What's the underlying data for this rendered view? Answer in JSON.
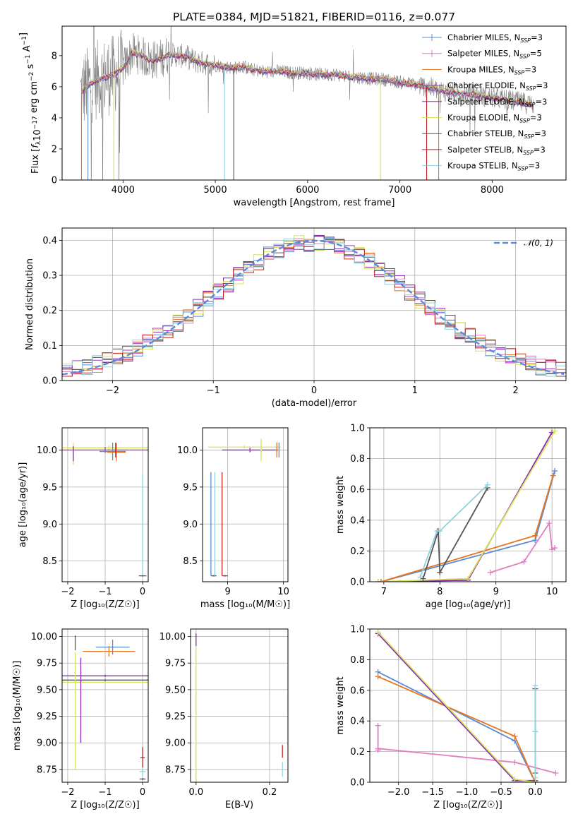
{
  "figure_title": "PLATE=0384, MJD=51821, FIBERID=0116, z=0.077",
  "colors": {
    "Chabrier MILES": "#5b8bd6",
    "Salpeter MILES": "#e27fc0",
    "Kroupa MILES": "#e8741a",
    "Chabrier ELODIE": "#a23bc5",
    "Salpeter ELODIE": "#8a2ab2",
    "Kroupa ELODIE": "#d4e45a",
    "Chabrier STELIB": "#555555",
    "Salpeter STELIB": "#c62020",
    "Kroupa STELIB": "#8fd4de",
    "normal": "#5b8bd6",
    "data_spectrum": "#808080"
  },
  "chart_data": [
    {
      "id": "spectrum",
      "type": "line",
      "xlabel": "wavelength [Angstrom, rest frame]",
      "ylabel_parts": {
        "pre": "Flux [",
        "fsym": "f",
        "fsub": "λ",
        "mid": "10",
        "exp1": "−17",
        "mid2": " erg cm",
        "exp2": "−2",
        "mid3": " s",
        "exp3": "−1",
        "mid4": " A",
        "exp4": "−1",
        "post": "]"
      },
      "xlim": [
        3340,
        8800
      ],
      "ylim": [
        0,
        9.9
      ],
      "xticks": [
        4000,
        5000,
        6000,
        7000,
        8000
      ],
      "yticks": [
        0,
        2,
        4,
        6,
        8
      ],
      "continuum": {
        "x": [
          3550,
          3600,
          3700,
          3800,
          3900,
          4000,
          4100,
          4200,
          4300,
          4400,
          4500,
          4600,
          4700,
          4800,
          4900,
          5000,
          5100,
          5200,
          5300,
          5400,
          5500,
          5600,
          5700,
          5800,
          5900,
          6000,
          6100,
          6200,
          6300,
          6400,
          6500,
          6600,
          6700,
          6800,
          6900,
          7000,
          7100,
          7200,
          7300,
          7400,
          7500,
          7600,
          7700,
          7800,
          7900,
          8000,
          8100,
          8200,
          8300,
          8400,
          8500
        ],
        "y": [
          5.6,
          6.0,
          6.4,
          6.6,
          6.8,
          7.2,
          8.2,
          8.0,
          7.7,
          7.8,
          8.1,
          8.0,
          7.9,
          7.6,
          7.5,
          7.4,
          7.3,
          7.2,
          7.3,
          7.1,
          7.0,
          7.0,
          7.0,
          6.9,
          6.9,
          6.9,
          6.8,
          6.8,
          6.8,
          6.7,
          6.6,
          6.6,
          6.5,
          6.5,
          6.4,
          6.3,
          6.2,
          6.1,
          6.0,
          5.8,
          5.7,
          5.6,
          5.6,
          5.5,
          5.4,
          5.3,
          5.2,
          5.1,
          5.0,
          4.9,
          4.8
        ]
      },
      "legend": [
        {
          "name": "Chabrier MILES",
          "nssp": "3"
        },
        {
          "name": "Salpeter MILES",
          "nssp": "5"
        },
        {
          "name": "Kroupa MILES",
          "nssp": "3"
        },
        {
          "name": "Chabrier ELODIE",
          "nssp": "3"
        },
        {
          "name": "Salpeter ELODIE",
          "nssp": "3"
        },
        {
          "name": "Kroupa ELODIE",
          "nssp": "3"
        },
        {
          "name": "Chabrier STELIB",
          "nssp": "3"
        },
        {
          "name": "Salpeter STELIB",
          "nssp": "3"
        },
        {
          "name": "Kroupa STELIB",
          "nssp": "3"
        }
      ],
      "legend_label_symbol": "N",
      "legend_label_sub": "SSP",
      "legend_placement": "top-right"
    },
    {
      "id": "residuals",
      "type": "line",
      "xlabel": "(data-model)/error",
      "ylabel": "Normed distribution",
      "xlim": [
        -2.5,
        2.5
      ],
      "ylim": [
        0,
        0.435
      ],
      "xticks": [
        -2,
        -1,
        0,
        1,
        2
      ],
      "yticks": [
        0.0,
        0.1,
        0.2,
        0.3,
        0.4
      ],
      "xtick_labels": [
        "−2",
        "−1",
        "0",
        "1",
        "2"
      ],
      "ytick_labels": [
        "0.0",
        "0.1",
        "0.2",
        "0.3",
        "0.4"
      ],
      "bin_width": 0.1,
      "legend_label": "𝒩(0, 1)",
      "legend_placement": "top-right",
      "grid": true
    },
    {
      "id": "age_vs_Z",
      "type": "errorbar",
      "xlabel": "Z [log₁₀(Z/Z☉)]",
      "ylabel": "age  [log₁₀(age/yr)]",
      "xlim": [
        -2.15,
        0.15
      ],
      "ylim": [
        8.22,
        10.3
      ],
      "xticks": [
        -2,
        -1,
        0
      ],
      "yticks": [
        8.5,
        9.0,
        9.5,
        10.0
      ],
      "xtick_labels": [
        "−2",
        "−1",
        "0"
      ],
      "ytick_labels": [
        "8.5",
        "9.0",
        "9.5",
        "10.0"
      ],
      "points": [
        {
          "model": "Kroupa ELODIE",
          "x": -0.9,
          "xerr": 1.95,
          "y": 10.03,
          "yerr": 0.03
        },
        {
          "model": "Chabrier ELODIE",
          "x": -1.0,
          "xerr": 1.8,
          "y": 10.0,
          "yerr": 0.04
        },
        {
          "model": "Kroupa ELODIE",
          "x": -1.85,
          "xerr": 0.01,
          "y": 9.95,
          "yerr": 0.15
        },
        {
          "model": "Salpeter ELODIE",
          "x": -1.85,
          "xerr": 0.01,
          "y": 9.95,
          "yerr": 0.1
        },
        {
          "model": "Chabrier MILES",
          "x": -0.8,
          "xerr": 0.35,
          "y": 9.98,
          "yerr": 0.12
        },
        {
          "model": "Kroupa MILES",
          "x": -0.7,
          "xerr": 0.25,
          "y": 9.97,
          "yerr": 0.12
        },
        {
          "model": "Salpeter STELIB",
          "x": -0.72,
          "xerr": 0.02,
          "y": 10.0,
          "yerr": 0.1
        },
        {
          "model": "Kroupa STELIB",
          "x": 0.0,
          "xerr": 0.01,
          "y": 9.0,
          "yerr": 0.68
        },
        {
          "model": "Chabrier STELIB",
          "x": 0.0,
          "xerr": 0.1,
          "y": 8.3,
          "yerr": 0.01
        }
      ]
    },
    {
      "id": "age_vs_mass",
      "type": "errorbar",
      "xlabel": "mass [log₁₀(M/M☉)]",
      "xlim": [
        8.55,
        10.08
      ],
      "ylim": [
        8.22,
        10.3
      ],
      "xticks": [
        9,
        10
      ],
      "yticks": [
        8.5,
        9.0,
        9.5,
        10.0
      ],
      "xtick_labels": [
        "9",
        "10"
      ],
      "ytick_labels": [
        "8.5",
        "9.0",
        "9.5",
        "10.0"
      ],
      "points": [
        {
          "model": "Kroupa ELODIE",
          "x": 9.3,
          "xerr": 0.65,
          "y": 10.04,
          "yerr": 0.02
        },
        {
          "model": "Salpeter ELODIE",
          "x": 9.4,
          "xerr": 0.5,
          "y": 10.0,
          "yerr": 0.03
        },
        {
          "model": "Kroupa ELODIE",
          "x": 9.6,
          "xerr": 0.01,
          "y": 10.0,
          "yerr": 0.15
        },
        {
          "model": "Chabrier MILES",
          "x": 9.92,
          "xerr": 0.01,
          "y": 10.0,
          "yerr": 0.1
        },
        {
          "model": "Kroupa MILES",
          "x": 9.88,
          "xerr": 0.01,
          "y": 10.0,
          "yerr": 0.1
        },
        {
          "model": "Chabrier STELIB",
          "x": 8.75,
          "xerr": 0.05,
          "y": 8.3,
          "yerr": 0.01
        },
        {
          "model": "Chabrier MILES",
          "x": 8.7,
          "xerr": 0.01,
          "y": 9.0,
          "yerr": 0.7
        },
        {
          "model": "Kroupa STELIB",
          "x": 8.77,
          "xerr": 0.01,
          "y": 9.0,
          "yerr": 0.7
        },
        {
          "model": "Salpeter STELIB",
          "x": 8.9,
          "xerr": 0.01,
          "y": 9.0,
          "yerr": 0.7
        },
        {
          "model": "Salpeter STELIB",
          "x": 8.95,
          "xerr": 0.05,
          "y": 8.3,
          "yerr": 0.01
        }
      ]
    },
    {
      "id": "massweight_vs_age",
      "type": "line",
      "xlabel": "age  [log₁₀(age/yr)]",
      "ylabel": "mass weight",
      "xlim": [
        6.75,
        10.25
      ],
      "ylim": [
        0,
        1.0
      ],
      "xticks": [
        7,
        8,
        9,
        10
      ],
      "yticks": [
        0.0,
        0.2,
        0.4,
        0.6,
        0.8,
        1.0
      ],
      "xtick_labels": [
        "7",
        "8",
        "9",
        "10"
      ],
      "ytick_labels": [
        "0.0",
        "0.2",
        "0.4",
        "0.6",
        "0.8",
        "1.0"
      ],
      "series": [
        {
          "model": "Chabrier MILES",
          "x": [
            6.95,
            9.7,
            10.05
          ],
          "y": [
            0.0,
            0.27,
            0.72
          ]
        },
        {
          "model": "Salpeter MILES",
          "x": [
            8.9,
            9.5,
            9.95,
            10.0,
            10.05
          ],
          "y": [
            0.06,
            0.13,
            0.38,
            0.21,
            0.22
          ]
        },
        {
          "model": "Kroupa MILES",
          "x": [
            6.95,
            9.7,
            10.02
          ],
          "y": [
            0.0,
            0.3,
            0.69
          ]
        },
        {
          "model": "Salpeter ELODIE",
          "x": [
            6.9,
            8.5,
            10.0
          ],
          "y": [
            0.0,
            0.01,
            0.97
          ]
        },
        {
          "model": "Kroupa ELODIE",
          "x": [
            6.9,
            8.5,
            10.05
          ],
          "y": [
            0.0,
            0.02,
            0.98
          ]
        },
        {
          "model": "Chabrier STELIB",
          "x": [
            7.7,
            7.97,
            8.0,
            8.85
          ],
          "y": [
            0.02,
            0.33,
            0.06,
            0.61
          ]
        },
        {
          "model": "Kroupa STELIB",
          "x": [
            7.65,
            7.95,
            8.0,
            8.85
          ],
          "y": [
            0.03,
            0.33,
            0.33,
            0.63
          ]
        }
      ],
      "grid": true
    },
    {
      "id": "mass_vs_Z",
      "type": "errorbar",
      "xlabel": "Z [log₁₀(Z/Z☉)]",
      "ylabel": "mass [log₁₀(M/M☉)]",
      "xlim": [
        -2.15,
        0.15
      ],
      "ylim": [
        8.63,
        10.07
      ],
      "xticks": [
        -2,
        -1,
        0
      ],
      "yticks": [
        8.75,
        9.0,
        9.25,
        9.5,
        9.75,
        10.0
      ],
      "xtick_labels": [
        "−2",
        "−1",
        "0"
      ],
      "ytick_labels": [
        "8.75",
        "9.00",
        "9.25",
        "9.50",
        "9.75",
        "10.00"
      ],
      "points": [
        {
          "model": "Salpeter ELODIE",
          "x": -1.0,
          "xerr": 2.2,
          "y": 9.63,
          "yerr": 0.01
        },
        {
          "model": "Kroupa ELODIE",
          "x": -1.0,
          "xerr": 2.1,
          "y": 9.57,
          "yerr": 0.01
        },
        {
          "model": "Chabrier STELIB",
          "x": -1.0,
          "xerr": 2.0,
          "y": 9.59,
          "yerr": 0.01
        },
        {
          "model": "Kroupa ELODIE",
          "x": -1.8,
          "xerr": 0.01,
          "y": 9.3,
          "yerr": 0.55
        },
        {
          "model": "Salpeter ELODIE",
          "x": -1.65,
          "xerr": 0.01,
          "y": 9.4,
          "yerr": 0.4
        },
        {
          "model": "Chabrier MILES",
          "x": -0.8,
          "xerr": 0.45,
          "y": 9.9,
          "yerr": 0.07
        },
        {
          "model": "Kroupa MILES",
          "x": -0.9,
          "xerr": 0.7,
          "y": 9.86,
          "yerr": 0.05
        },
        {
          "model": "Chabrier STELIB",
          "x": -1.8,
          "xerr": 0.01,
          "y": 9.94,
          "yerr": 0.07
        },
        {
          "model": "Salpeter STELIB",
          "x": 0.0,
          "xerr": 0.06,
          "y": 8.86,
          "yerr": 0.1
        },
        {
          "model": "Kroupa STELIB",
          "x": 0.0,
          "xerr": 0.08,
          "y": 8.73,
          "yerr": 0.04
        },
        {
          "model": "Chabrier STELIB",
          "x": 0.0,
          "xerr": 0.08,
          "y": 8.66,
          "yerr": 0.01
        }
      ]
    },
    {
      "id": "mass_vs_ebv",
      "type": "errorbar",
      "xlabel": "E(B-V)",
      "xlim": [
        -0.015,
        0.25
      ],
      "ylim": [
        8.63,
        10.07
      ],
      "xticks": [
        0.0,
        0.2
      ],
      "yticks": [
        8.75,
        9.0,
        9.25,
        9.5,
        9.75,
        10.0
      ],
      "xtick_labels": [
        "0.0",
        "0.2"
      ],
      "ytick_labels": [
        "8.75",
        "9.00",
        "9.25",
        "9.50",
        "9.75",
        "10.00"
      ],
      "points": [
        {
          "model": "Salpeter ELODIE",
          "x": 0.0,
          "xerr": 0.0,
          "y": 9.97,
          "yerr": 0.06
        },
        {
          "model": "Kroupa ELODIE",
          "x": 0.0,
          "xerr": 0.0,
          "y": 9.2,
          "yerr": 0.7
        },
        {
          "model": "Salpeter STELIB",
          "x": 0.235,
          "xerr": 0.0,
          "y": 8.92,
          "yerr": 0.06
        },
        {
          "model": "Kroupa STELIB",
          "x": 0.235,
          "xerr": 0.0,
          "y": 8.75,
          "yerr": 0.07
        }
      ],
      "grid": true
    },
    {
      "id": "massweight_vs_Z",
      "type": "line",
      "xlabel": "Z [log₁₀(Z/Z☉)]",
      "ylabel": "mass weight",
      "xlim": [
        -2.42,
        0.45
      ],
      "ylim": [
        0,
        1.0
      ],
      "xticks": [
        -2.0,
        -1.5,
        -1.0,
        -0.5,
        0.0
      ],
      "yticks": [
        0.0,
        0.2,
        0.4,
        0.6,
        0.8,
        1.0
      ],
      "xtick_labels": [
        "−2.0",
        "−1.5",
        "−1.0",
        "−0.5",
        "0.0"
      ],
      "ytick_labels": [
        "0.0",
        "0.2",
        "0.4",
        "0.6",
        "0.8",
        "1.0"
      ],
      "series": [
        {
          "model": "Chabrier MILES",
          "x": [
            -2.3,
            -0.3,
            0.0
          ],
          "y": [
            0.72,
            0.27,
            0.0
          ]
        },
        {
          "model": "Kroupa MILES",
          "x": [
            -2.3,
            -0.3,
            0.0
          ],
          "y": [
            0.69,
            0.3,
            0.0
          ]
        },
        {
          "model": "Salpeter MILES",
          "x": [
            -2.3,
            -2.3,
            -2.3,
            -0.3,
            0.3
          ],
          "y": [
            0.37,
            0.21,
            0.22,
            0.13,
            0.06
          ]
        },
        {
          "model": "Salpeter ELODIE",
          "x": [
            -2.3,
            -0.3,
            0.0
          ],
          "y": [
            0.97,
            0.01,
            0.01
          ]
        },
        {
          "model": "Kroupa ELODIE",
          "x": [
            -2.3,
            -0.3,
            0.0
          ],
          "y": [
            0.98,
            0.02,
            0.0
          ]
        },
        {
          "model": "Chabrier STELIB",
          "x": [
            0.0,
            0.0,
            0.0
          ],
          "y": [
            0.61,
            0.33,
            0.06
          ]
        },
        {
          "model": "Kroupa STELIB",
          "x": [
            0.0,
            0.0,
            0.0
          ],
          "y": [
            0.63,
            0.33,
            0.03
          ]
        }
      ],
      "grid": true
    }
  ]
}
